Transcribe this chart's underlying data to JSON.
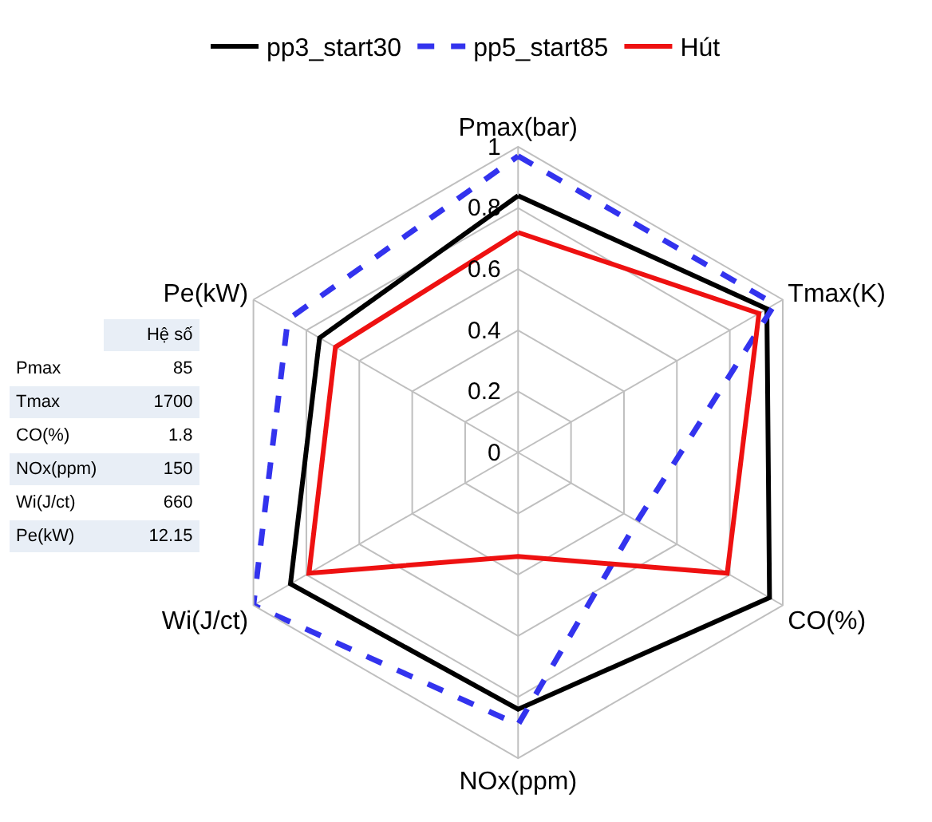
{
  "chart_data": {
    "type": "radar",
    "categories": [
      "Pmax(bar)",
      "Tmax(K)",
      "CO(%)",
      "NOx(ppm)",
      "Wi(J/ct)",
      "Pe(kW)"
    ],
    "series": [
      {
        "name": "pp3_start30",
        "color": "#000000",
        "line_style": "solid",
        "values": [
          0.84,
          0.94,
          0.95,
          0.84,
          0.86,
          0.75
        ]
      },
      {
        "name": "pp5_start85",
        "color": "#3333ee",
        "line_style": "dashed",
        "values": [
          0.97,
          0.97,
          0.45,
          0.89,
          1.0,
          0.87
        ]
      },
      {
        "name": "Hút",
        "color": "#ee1111",
        "line_style": "solid",
        "values": [
          0.72,
          0.91,
          0.79,
          0.34,
          0.79,
          0.69
        ]
      }
    ],
    "ylim": [
      0,
      1
    ],
    "yticks": [
      0,
      0.2,
      0.4,
      0.6,
      0.8,
      1
    ],
    "grid": true,
    "legend": "top",
    "marker": "none",
    "annotations": [
      "Hệ số",
      "Pmax",
      "85",
      "Tmax",
      "1700",
      "CO(%)",
      "1.8",
      "NOx(ppm)",
      "150",
      "Wi(J/ct)",
      "660",
      "Pe(kW)",
      "12.15"
    ]
  }
}
